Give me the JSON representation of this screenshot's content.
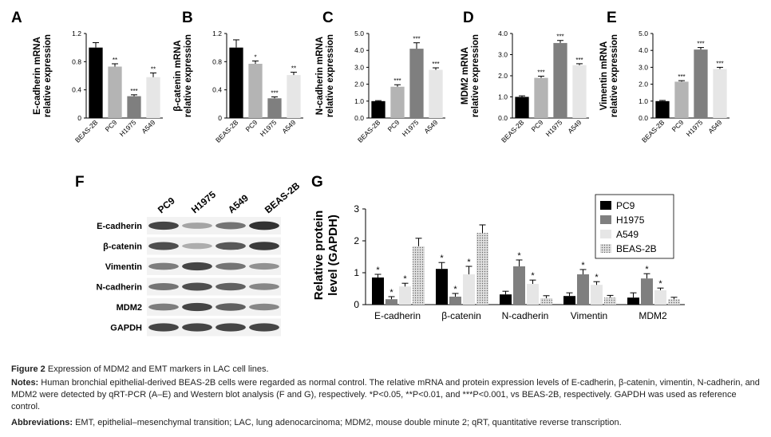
{
  "colors": {
    "black": "#000000",
    "dark_gray": "#7f7f7f",
    "mid_gray": "#b4b4b4",
    "light_gray": "#e6e6e6",
    "blot_bg": "#f2f2f2"
  },
  "caption": {
    "title_bold": "Figure 2",
    "title": "Expression of MDM2 and EMT markers in LAC cell lines.",
    "notes_label": "Notes:",
    "notes": "Human bronchial epithelial-derived BEAS-2B cells were regarded as normal control. The relative mRNA and protein expression levels of E-cadherin, β-catenin, vimentin, N-cadherin, and MDM2 were detected by qRT-PCR (A–E) and Western blot analysis (F and G), respectively. *P<0.05, **P<0.01, and ***P<0.001, vs BEAS-2B, respectively. GAPDH was used as reference control.",
    "abbr_label": "Abbreviations:",
    "abbr": "EMT, epithelial–mesenchymal transition; LAC, lung adenocarcinoma; MDM2, mouse double minute 2; qRT, quantitative reverse transcription."
  },
  "panel_labels": [
    "A",
    "B",
    "C",
    "D",
    "E",
    "F",
    "G"
  ],
  "blot": {
    "lanes": [
      "PC9",
      "H1975",
      "A549",
      "BEAS-2B"
    ],
    "rows": [
      {
        "name": "E-cadherin",
        "intensity": [
          0.85,
          0.35,
          0.6,
          0.95
        ]
      },
      {
        "name": "β-catenin",
        "intensity": [
          0.8,
          0.3,
          0.75,
          0.9
        ]
      },
      {
        "name": "Vimentin",
        "intensity": [
          0.55,
          0.85,
          0.6,
          0.45
        ]
      },
      {
        "name": "N-cadherin",
        "intensity": [
          0.6,
          0.8,
          0.7,
          0.5
        ]
      },
      {
        "name": "MDM2",
        "intensity": [
          0.55,
          0.85,
          0.7,
          0.5
        ]
      },
      {
        "name": "GAPDH",
        "intensity": [
          0.85,
          0.85,
          0.85,
          0.85
        ]
      }
    ]
  },
  "chart_data": [
    {
      "type": "bar",
      "panel": "A",
      "ylabel": "E-cadherin mRNA\nrelative expression",
      "categories": [
        "BEAS-2B",
        "PC9",
        "H1975",
        "A549"
      ],
      "values": [
        1.0,
        0.73,
        0.31,
        0.58
      ],
      "errors": [
        0.07,
        0.04,
        0.02,
        0.06
      ],
      "sig": [
        "",
        "**",
        "***",
        "**"
      ],
      "ylim": [
        0,
        1.2
      ],
      "yticks": [
        "0",
        "0.4",
        "0.8",
        "1.2"
      ],
      "ytick_values": [
        0,
        0.4,
        0.8,
        1.2
      ]
    },
    {
      "type": "bar",
      "panel": "B",
      "ylabel": "β-catenin mRNA\nrelative expression",
      "categories": [
        "BEAS-2B",
        "PC9",
        "H1975",
        "A549"
      ],
      "values": [
        1.0,
        0.77,
        0.28,
        0.61
      ],
      "errors": [
        0.11,
        0.04,
        0.02,
        0.04
      ],
      "sig": [
        "",
        "*",
        "***",
        "**"
      ],
      "ylim": [
        0,
        1.2
      ],
      "yticks": [
        "0",
        "0.4",
        "0.8",
        "1.2"
      ],
      "ytick_values": [
        0,
        0.4,
        0.8,
        1.2
      ]
    },
    {
      "type": "bar",
      "panel": "C",
      "ylabel": "N-cadherin mRNA\nrelative expression",
      "categories": [
        "BEAS-2B",
        "PC9",
        "H1975",
        "A549"
      ],
      "values": [
        1.0,
        1.85,
        4.1,
        2.85
      ],
      "errors": [
        0.03,
        0.12,
        0.35,
        0.12
      ],
      "sig": [
        "",
        "***",
        "***",
        "***"
      ],
      "ylim": [
        0,
        5
      ],
      "yticks": [
        "0.0",
        "1.0",
        "2.0",
        "3.0",
        "4.0",
        "5.0"
      ],
      "ytick_values": [
        0,
        1,
        2,
        3,
        4,
        5
      ]
    },
    {
      "type": "bar",
      "panel": "D",
      "ylabel": "MDM2 mRNA\nrelative expression",
      "categories": [
        "BEAS-2B",
        "PC9",
        "H1975",
        "A549"
      ],
      "values": [
        1.0,
        1.9,
        3.55,
        2.5
      ],
      "errors": [
        0.05,
        0.08,
        0.12,
        0.07
      ],
      "sig": [
        "",
        "***",
        "***",
        "***"
      ],
      "ylim": [
        0,
        4
      ],
      "yticks": [
        "0.0",
        "1.0",
        "2.0",
        "3.0",
        "4.0"
      ],
      "ytick_values": [
        0,
        1,
        2,
        3,
        4
      ]
    },
    {
      "type": "bar",
      "panel": "E",
      "ylabel": "Vimentin mRNA\nrelative expression",
      "categories": [
        "BEAS-2B",
        "PC9",
        "H1975",
        "A549"
      ],
      "values": [
        1.0,
        2.15,
        4.05,
        2.9
      ],
      "errors": [
        0.04,
        0.06,
        0.12,
        0.1
      ],
      "sig": [
        "",
        "***",
        "***",
        "***"
      ],
      "ylim": [
        0,
        5
      ],
      "yticks": [
        "0.0",
        "1.0",
        "2.0",
        "3.0",
        "4.0",
        "5.0"
      ],
      "ytick_values": [
        0,
        1,
        2,
        3,
        4,
        5
      ]
    },
    {
      "type": "bar",
      "panel": "G",
      "ylabel": "Relative protein\nlevel (GAPDH)",
      "categories": [
        "E-cadherin",
        "β-catenin",
        "N-cadherin",
        "Vimentin",
        "MDM2"
      ],
      "ylim": [
        0,
        3
      ],
      "yticks": [
        "0",
        "1",
        "2",
        "3"
      ],
      "ytick_values": [
        0,
        1,
        2,
        3
      ],
      "legend": "top-right",
      "series": [
        {
          "name": "PC9",
          "values": [
            0.85,
            1.12,
            0.32,
            0.27,
            0.22
          ],
          "errors": [
            0.1,
            0.2,
            0.1,
            0.1,
            0.15
          ],
          "sig": [
            "*",
            "*",
            "",
            "",
            ""
          ]
        },
        {
          "name": "H1975",
          "values": [
            0.17,
            0.25,
            1.2,
            0.95,
            0.82
          ],
          "errors": [
            0.08,
            0.1,
            0.2,
            0.15,
            0.15
          ],
          "sig": [
            "*",
            "*",
            "*",
            "*",
            "*"
          ]
        },
        {
          "name": "A549",
          "values": [
            0.57,
            0.95,
            0.65,
            0.62,
            0.45
          ],
          "errors": [
            0.1,
            0.25,
            0.12,
            0.1,
            0.07
          ],
          "sig": [
            "*",
            "*",
            "*",
            "*",
            "*"
          ]
        },
        {
          "name": "BEAS-2B",
          "values": [
            1.83,
            2.25,
            0.2,
            0.22,
            0.17
          ],
          "errors": [
            0.25,
            0.25,
            0.08,
            0.07,
            0.06
          ],
          "sig": [
            "",
            "",
            "",
            "",
            ""
          ]
        }
      ]
    }
  ]
}
